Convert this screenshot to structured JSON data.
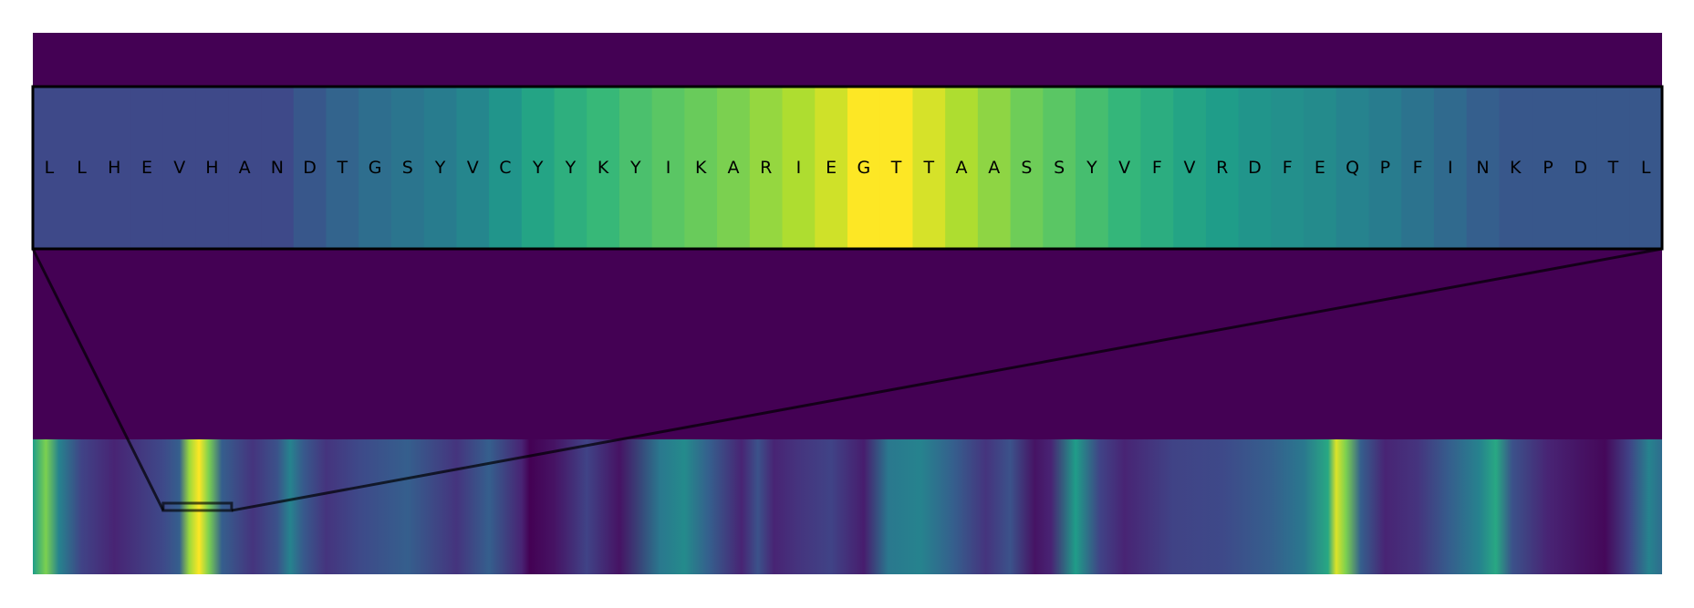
{
  "figure": {
    "background_color": "#440154",
    "colormap": "viridis",
    "frame_color": "#000000"
  },
  "chart_data": [
    {
      "type": "heatmap",
      "title": "",
      "description_role": "zoomed window",
      "categories": [
        "L",
        "L",
        "H",
        "E",
        "V",
        "H",
        "A",
        "N",
        "D",
        "T",
        "G",
        "S",
        "Y",
        "V",
        "C",
        "Y",
        "Y",
        "K",
        "Y",
        "I",
        "K",
        "A",
        "R",
        "I",
        "E",
        "G",
        "T",
        "T",
        "A",
        "A",
        "S",
        "S",
        "Y",
        "V",
        "F",
        "V",
        "R",
        "D",
        "F",
        "E",
        "Q",
        "P",
        "F",
        "I",
        "N",
        "K",
        "P",
        "D",
        "T",
        "L"
      ],
      "values": [
        0.22,
        0.22,
        0.22,
        0.22,
        0.22,
        0.22,
        0.22,
        0.22,
        0.27,
        0.32,
        0.36,
        0.39,
        0.42,
        0.46,
        0.52,
        0.58,
        0.63,
        0.67,
        0.71,
        0.74,
        0.77,
        0.8,
        0.84,
        0.88,
        0.93,
        1.0,
        1.0,
        0.94,
        0.88,
        0.83,
        0.78,
        0.74,
        0.7,
        0.66,
        0.62,
        0.58,
        0.55,
        0.52,
        0.5,
        0.48,
        0.45,
        0.42,
        0.38,
        0.34,
        0.3,
        0.27,
        0.27,
        0.27,
        0.27,
        0.27
      ],
      "color_range": [
        0,
        1
      ],
      "grid": false
    },
    {
      "type": "heatmap",
      "title": "",
      "description_role": "full sequence overview",
      "profile": [
        {
          "x": 0.0,
          "v": 0.55
        },
        {
          "x": 0.008,
          "v": 0.8
        },
        {
          "x": 0.016,
          "v": 0.45
        },
        {
          "x": 0.03,
          "v": 0.2
        },
        {
          "x": 0.05,
          "v": 0.1
        },
        {
          "x": 0.08,
          "v": 0.22
        },
        {
          "x": 0.09,
          "v": 0.3
        },
        {
          "x": 0.096,
          "v": 0.85
        },
        {
          "x": 0.102,
          "v": 1.0
        },
        {
          "x": 0.108,
          "v": 0.8
        },
        {
          "x": 0.116,
          "v": 0.3
        },
        {
          "x": 0.135,
          "v": 0.15
        },
        {
          "x": 0.15,
          "v": 0.25
        },
        {
          "x": 0.158,
          "v": 0.45
        },
        {
          "x": 0.166,
          "v": 0.28
        },
        {
          "x": 0.18,
          "v": 0.15
        },
        {
          "x": 0.2,
          "v": 0.22
        },
        {
          "x": 0.23,
          "v": 0.3
        },
        {
          "x": 0.26,
          "v": 0.15
        },
        {
          "x": 0.28,
          "v": 0.3
        },
        {
          "x": 0.3,
          "v": 0.1
        },
        {
          "x": 0.305,
          "v": 0.0
        },
        {
          "x": 0.32,
          "v": 0.05
        },
        {
          "x": 0.34,
          "v": 0.2
        },
        {
          "x": 0.36,
          "v": 0.05
        },
        {
          "x": 0.385,
          "v": 0.4
        },
        {
          "x": 0.4,
          "v": 0.48
        },
        {
          "x": 0.415,
          "v": 0.3
        },
        {
          "x": 0.435,
          "v": 0.1
        },
        {
          "x": 0.445,
          "v": 0.25
        },
        {
          "x": 0.455,
          "v": 0.1
        },
        {
          "x": 0.47,
          "v": 0.15
        },
        {
          "x": 0.49,
          "v": 0.2
        },
        {
          "x": 0.51,
          "v": 0.08
        },
        {
          "x": 0.525,
          "v": 0.4
        },
        {
          "x": 0.545,
          "v": 0.45
        },
        {
          "x": 0.565,
          "v": 0.3
        },
        {
          "x": 0.585,
          "v": 0.15
        },
        {
          "x": 0.6,
          "v": 0.25
        },
        {
          "x": 0.615,
          "v": 0.05
        },
        {
          "x": 0.625,
          "v": 0.1
        },
        {
          "x": 0.64,
          "v": 0.55
        },
        {
          "x": 0.655,
          "v": 0.2
        },
        {
          "x": 0.67,
          "v": 0.1
        },
        {
          "x": 0.7,
          "v": 0.2
        },
        {
          "x": 0.73,
          "v": 0.22
        },
        {
          "x": 0.76,
          "v": 0.3
        },
        {
          "x": 0.78,
          "v": 0.4
        },
        {
          "x": 0.795,
          "v": 0.6
        },
        {
          "x": 0.8,
          "v": 0.95
        },
        {
          "x": 0.806,
          "v": 0.8
        },
        {
          "x": 0.815,
          "v": 0.3
        },
        {
          "x": 0.83,
          "v": 0.1
        },
        {
          "x": 0.85,
          "v": 0.15
        },
        {
          "x": 0.87,
          "v": 0.3
        },
        {
          "x": 0.888,
          "v": 0.45
        },
        {
          "x": 0.898,
          "v": 0.6
        },
        {
          "x": 0.908,
          "v": 0.25
        },
        {
          "x": 0.93,
          "v": 0.1
        },
        {
          "x": 0.95,
          "v": 0.05
        },
        {
          "x": 0.965,
          "v": 0.02
        },
        {
          "x": 0.98,
          "v": 0.2
        },
        {
          "x": 0.992,
          "v": 0.45
        },
        {
          "x": 1.0,
          "v": 0.35
        }
      ],
      "window": {
        "start": 0.08,
        "end": 0.122
      },
      "color_range": [
        0,
        1
      ],
      "grid": false
    }
  ]
}
